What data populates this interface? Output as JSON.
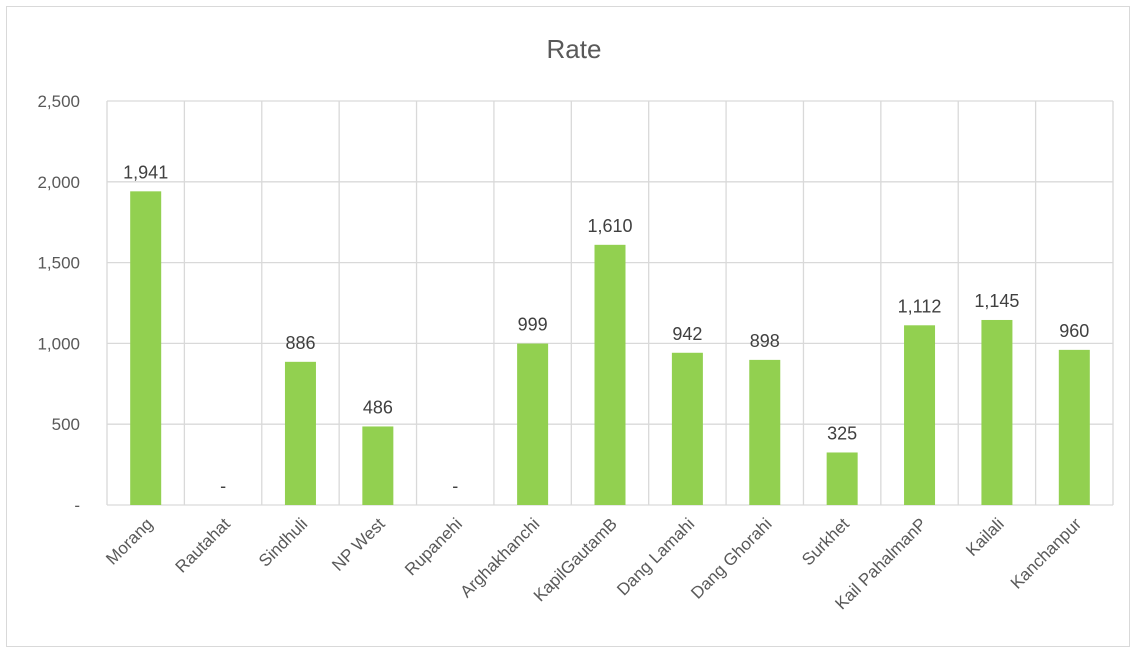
{
  "chart_data": {
    "type": "bar",
    "title": "Rate",
    "categories": [
      "Morang",
      "Rautahat",
      "Sindhuli",
      "NP West",
      "Rupanehi",
      "Arghakhanchi",
      "KapilGautamB",
      "Dang Lamahi",
      "Dang Ghorahi",
      "Surkhet",
      "Kail PahalmanP",
      "Kailali",
      "Kanchanpur"
    ],
    "values": [
      1941,
      0,
      886,
      486,
      0,
      999,
      1610,
      942,
      898,
      325,
      1112,
      1145,
      960
    ],
    "data_labels": [
      "1,941",
      "-",
      "886",
      "486",
      "-",
      "999",
      "1,610",
      "942",
      "898",
      "325",
      "1,112",
      "1,145",
      "960"
    ],
    "ylim": [
      0,
      2500
    ],
    "yticks": [
      0,
      500,
      1000,
      1500,
      2000,
      2500
    ],
    "ytick_labels": [
      "-",
      "500",
      "1,000",
      "1,500",
      "2,000",
      "2,500"
    ],
    "xlabel": "",
    "ylabel": "",
    "grid": true,
    "bar_color": "#92d050"
  }
}
